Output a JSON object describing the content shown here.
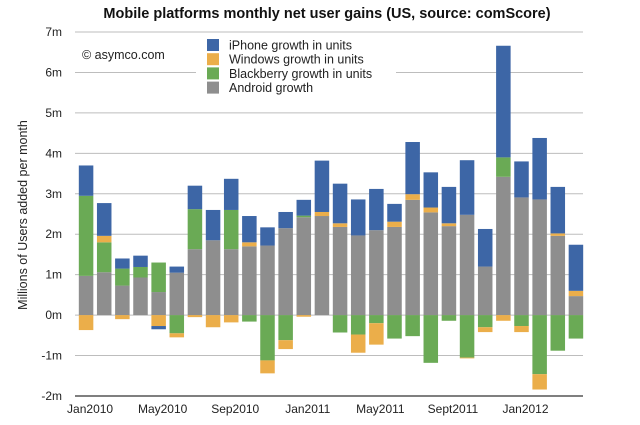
{
  "chart_data": {
    "type": "bar",
    "stacked": true,
    "title": "Mobile platforms monthly net user gains (US, source: comScore)",
    "xlabel": "",
    "ylabel": "Millions of Users added per month",
    "ylim": [
      -2,
      7
    ],
    "yticks": [
      -2,
      -1,
      0,
      1,
      2,
      3,
      4,
      5,
      6,
      7
    ],
    "ytick_labels": [
      "-2m",
      "-1m",
      "0m",
      "1m",
      "2m",
      "3m",
      "4m",
      "5m",
      "6m",
      "7m"
    ],
    "grid": true,
    "legend_position": "top-left",
    "watermark": "© asymco.com",
    "categories": [
      "Jan2010",
      "Feb2010",
      "Mar2010",
      "Apr2010",
      "May2010",
      "Jun2010",
      "Jul2010",
      "Aug2010",
      "Sep2010",
      "Oct2010",
      "Nov2010",
      "Dec2010",
      "Jan2011",
      "Feb2011",
      "Mar2011",
      "Apr2011",
      "May2011",
      "Jun2011",
      "Jul2011",
      "Aug2011",
      "Sept2011",
      "Oct2011",
      "Nov2011",
      "Dec2011",
      "Jan2012",
      "Feb2012",
      "Mar2012",
      "Apr2012"
    ],
    "xtick_labels": [
      {
        "index": 0,
        "label": "Jan2010"
      },
      {
        "index": 4,
        "label": "May2010"
      },
      {
        "index": 8,
        "label": "Sep2010"
      },
      {
        "index": 12,
        "label": "Jan2011"
      },
      {
        "index": 16,
        "label": "May2011"
      },
      {
        "index": 20,
        "label": "Sept2011"
      },
      {
        "index": 24,
        "label": "Jan2012"
      }
    ],
    "series": [
      {
        "name": "Android growth",
        "color": "#8e8e8e",
        "values": [
          0.97,
          1.06,
          0.73,
          0.93,
          0.57,
          1.05,
          1.63,
          1.85,
          1.63,
          1.7,
          1.72,
          2.15,
          2.42,
          2.45,
          2.18,
          1.97,
          2.1,
          2.18,
          2.85,
          2.54,
          2.2,
          2.48,
          1.2,
          3.42,
          2.91,
          2.86,
          1.96,
          0.47
        ]
      },
      {
        "name": "Blackberry growth in units",
        "color": "#6aaa55",
        "values": [
          1.98,
          0.74,
          0.42,
          0.26,
          0.73,
          -0.45,
          0.99,
          0,
          0.97,
          -0.16,
          -1.12,
          -0.62,
          0.04,
          0,
          -0.43,
          -0.48,
          -0.2,
          -0.58,
          -0.52,
          -1.18,
          -0.14,
          -1.05,
          -0.3,
          0.48,
          -0.27,
          -1.46,
          -0.88,
          -0.58
        ]
      },
      {
        "name": "Windows growth in units",
        "color": "#ebae4a",
        "values": [
          -0.37,
          0.16,
          -0.1,
          0,
          -0.27,
          -0.1,
          -0.05,
          -0.3,
          -0.18,
          0.1,
          -0.32,
          -0.22,
          -0.04,
          0.1,
          0.09,
          -0.45,
          -0.53,
          0.13,
          0.14,
          0.12,
          0.07,
          -0.02,
          -0.12,
          -0.14,
          -0.15,
          -0.38,
          0.06,
          0.13
        ]
      },
      {
        "name": "iPhone growth in units",
        "color": "#3d66a6",
        "values": [
          0.75,
          0.81,
          0.25,
          0.28,
          -0.08,
          0.15,
          0.58,
          0.75,
          0.77,
          0.65,
          0.45,
          0.4,
          0.39,
          1.27,
          0.98,
          0.89,
          1.02,
          0.44,
          1.29,
          0.87,
          0.9,
          1.35,
          0.93,
          2.76,
          0.89,
          1.52,
          1.15,
          1.14
        ]
      }
    ],
    "legend": [
      {
        "label": "iPhone growth in units",
        "color": "#3d66a6"
      },
      {
        "label": "Windows growth in units",
        "color": "#ebae4a"
      },
      {
        "label": "Blackberry growth in units",
        "color": "#6aaa55"
      },
      {
        "label": "Android growth",
        "color": "#8e8e8e"
      }
    ]
  }
}
